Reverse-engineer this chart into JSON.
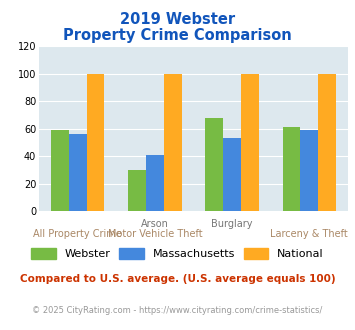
{
  "title_line1": "2019 Webster",
  "title_line2": "Property Crime Comparison",
  "groups": [
    {
      "top_label": "",
      "bottom_label": "All Property Crime",
      "webster": 59,
      "massachusetts": 56,
      "national": 100
    },
    {
      "top_label": "Arson",
      "bottom_label": "Motor Vehicle Theft",
      "webster": 30,
      "massachusetts": 41,
      "national": 100
    },
    {
      "top_label": "Burglary",
      "bottom_label": "",
      "webster": 68,
      "massachusetts": 53,
      "national": 100
    },
    {
      "top_label": "",
      "bottom_label": "Larceny & Theft",
      "webster": 61,
      "massachusetts": 59,
      "national": 100
    }
  ],
  "color_webster": "#77bb44",
  "color_massachusetts": "#4488dd",
  "color_national": "#ffaa22",
  "ylim": [
    0,
    120
  ],
  "yticks": [
    0,
    20,
    40,
    60,
    80,
    100,
    120
  ],
  "legend_labels": [
    "Webster",
    "Massachusetts",
    "National"
  ],
  "footnote1": "Compared to U.S. average. (U.S. average equals 100)",
  "footnote2": "© 2025 CityRating.com - https://www.cityrating.com/crime-statistics/",
  "bg_color": "#dde8ee",
  "title_color": "#1155bb",
  "footnote1_color": "#cc3300",
  "footnote2_color": "#999999",
  "top_label_color": "#777777",
  "bottom_label_color": "#aa8866"
}
